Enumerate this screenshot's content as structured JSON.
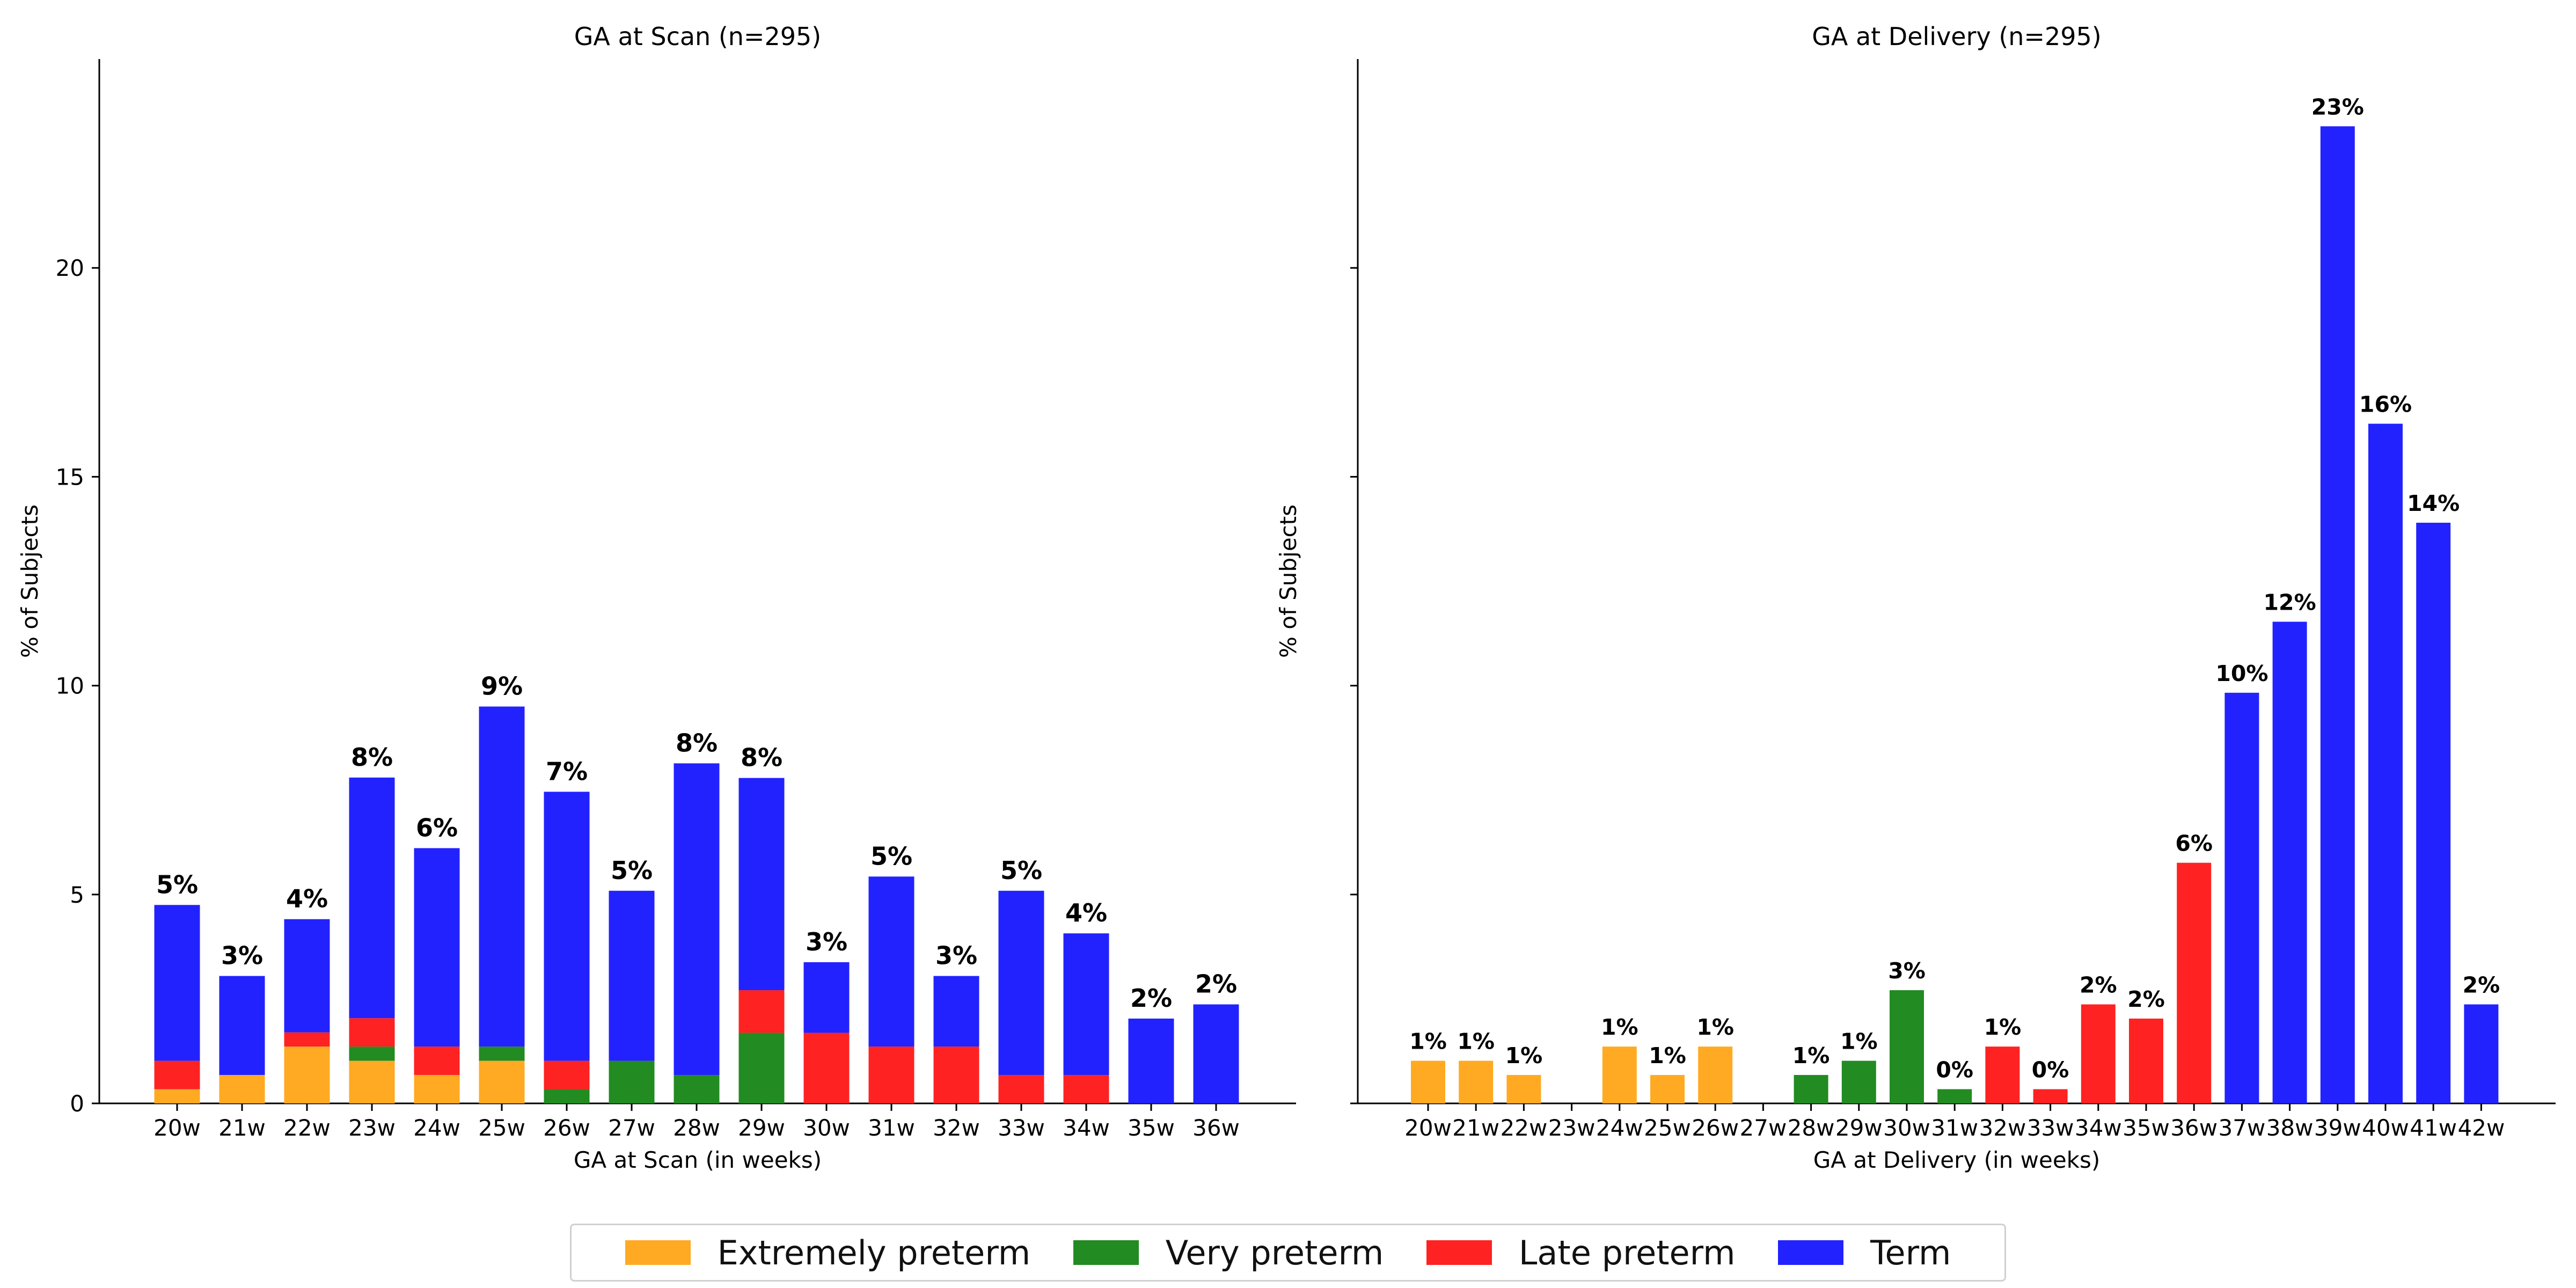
{
  "colors": {
    "extremely": "#FFAA22",
    "very": "#228B22",
    "late": "#FF2222",
    "term": "#2222FF"
  },
  "legend": [
    {
      "key": "extremely",
      "label": "Extremely preterm",
      "color": "#FFAA22"
    },
    {
      "key": "very",
      "label": "Very preterm",
      "color": "#228B22"
    },
    {
      "key": "late",
      "label": "Late preterm",
      "color": "#FF2222"
    },
    {
      "key": "term",
      "label": "Term",
      "color": "#2222FF"
    }
  ],
  "chart_data": [
    {
      "type": "bar",
      "stacked": true,
      "title": "GA at Scan (n=295)",
      "xlabel": "GA at Scan (in weeks)",
      "ylabel": "% of Subjects",
      "ylim": [
        0,
        25
      ],
      "yticks": [
        0,
        5,
        10,
        15,
        20
      ],
      "categories": [
        "20w",
        "21w",
        "22w",
        "23w",
        "24w",
        "25w",
        "26w",
        "27w",
        "28w",
        "29w",
        "30w",
        "31w",
        "32w",
        "33w",
        "34w",
        "35w",
        "36w"
      ],
      "series": [
        {
          "name": "Extremely preterm",
          "key": "extremely",
          "values": [
            0.34,
            0.68,
            1.36,
            1.02,
            0.68,
            1.02,
            0,
            0,
            0,
            0,
            0,
            0,
            0,
            0,
            0,
            0,
            0
          ]
        },
        {
          "name": "Very preterm",
          "key": "very",
          "values": [
            0,
            0,
            0,
            0.34,
            0,
            0.34,
            0.34,
            1.02,
            0.68,
            1.69,
            0,
            0,
            0,
            0,
            0,
            0,
            0
          ]
        },
        {
          "name": "Late preterm",
          "key": "late",
          "values": [
            0.68,
            0,
            0.34,
            0.68,
            0.68,
            0,
            0.68,
            0,
            0,
            1.02,
            1.69,
            1.36,
            1.36,
            0.68,
            0.68,
            0,
            0
          ]
        },
        {
          "name": "Term",
          "key": "term",
          "values": [
            3.73,
            2.37,
            2.71,
            5.76,
            4.75,
            8.14,
            6.44,
            4.07,
            7.46,
            5.08,
            1.69,
            4.07,
            1.69,
            4.41,
            3.39,
            2.03,
            2.37
          ]
        }
      ],
      "data_labels": [
        "5%",
        "3%",
        "4%",
        "8%",
        "6%",
        "9%",
        "7%",
        "5%",
        "8%",
        "8%",
        "3%",
        "5%",
        "3%",
        "5%",
        "4%",
        "2%",
        "2%"
      ]
    },
    {
      "type": "bar",
      "stacked": false,
      "title": "GA at Delivery (n=295)",
      "xlabel": "GA at Delivery (in weeks)",
      "ylabel": "% of Subjects",
      "ylim": [
        0,
        25
      ],
      "yticks": [
        0,
        5,
        10,
        15,
        20
      ],
      "categories": [
        "20w",
        "21w",
        "22w",
        "23w",
        "24w",
        "25w",
        "26w",
        "27w",
        "28w",
        "29w",
        "30w",
        "31w",
        "32w",
        "33w",
        "34w",
        "35w",
        "36w",
        "37w",
        "38w",
        "39w",
        "40w",
        "41w",
        "42w"
      ],
      "values": [
        1.02,
        1.02,
        0.68,
        0,
        1.36,
        0.68,
        1.36,
        0,
        0.68,
        1.02,
        2.71,
        0.34,
        1.36,
        0.34,
        2.37,
        2.03,
        5.76,
        9.83,
        11.53,
        23.39,
        16.27,
        13.9,
        2.37
      ],
      "bar_groups": [
        "extremely",
        "extremely",
        "extremely",
        "extremely",
        "extremely",
        "extremely",
        "extremely",
        "very",
        "very",
        "very",
        "very",
        "very",
        "late",
        "late",
        "late",
        "late",
        "late",
        "term",
        "term",
        "term",
        "term",
        "term",
        "term"
      ],
      "data_labels": [
        "1%",
        "1%",
        "1%",
        "",
        "1%",
        "1%",
        "1%",
        "",
        "1%",
        "1%",
        "3%",
        "0%",
        "1%",
        "0%",
        "2%",
        "2%",
        "6%",
        "10%",
        "12%",
        "23%",
        "16%",
        "14%",
        "2%"
      ]
    }
  ]
}
